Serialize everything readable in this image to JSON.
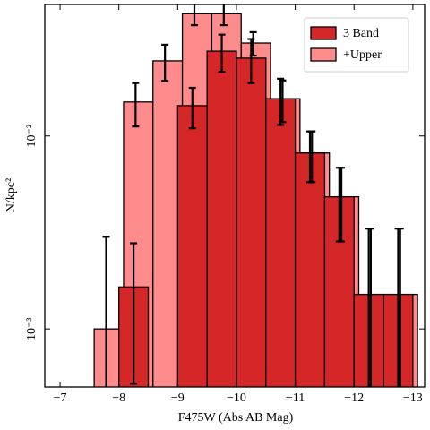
{
  "chart_data": {
    "type": "histogram",
    "xlabel": "F475W (Abs AB Mag)",
    "ylabel": "N/kpc²",
    "xlim": [
      -6.74,
      -13.2
    ],
    "ylim": [
      0.0005,
      0.048
    ],
    "log_y": true,
    "xticks": [
      {
        "value": -7,
        "label": "−7"
      },
      {
        "value": -8,
        "label": "−8"
      },
      {
        "value": -9,
        "label": "−9"
      },
      {
        "value": -10,
        "label": "−10"
      },
      {
        "value": -11,
        "label": "−11"
      },
      {
        "value": -12,
        "label": "−12"
      },
      {
        "value": -13,
        "label": "−13"
      }
    ],
    "yticks": [
      {
        "value": 0.001,
        "label": "10⁻³"
      },
      {
        "value": 0.01,
        "label": "10⁻²"
      }
    ],
    "legend": "upper right",
    "series": [
      {
        "name": "3 Band",
        "color": "#d62728",
        "bins": [
          -8,
          -8.5,
          -9,
          -9.5,
          -10,
          -10.5,
          -11,
          -11.5,
          -12,
          -12.5,
          -13
        ],
        "values": [
          0.00165,
          null,
          0.01436,
          0.0275,
          0.0253,
          0.0156,
          0.00816,
          0.00484,
          0.00151,
          0.00151
        ],
        "errors": [
          0.00113,
          null,
          0.0034,
          0.006,
          0.0065,
          0.0042,
          0.0024,
          0.002,
          0.0018,
          0.0018
        ]
      },
      {
        "name": "+Upper",
        "color": "#ff8c8c",
        "bins": [
          -7.58,
          -8.08,
          -8.58,
          -9.08,
          -9.58,
          -10.08,
          -10.58,
          -11.08,
          -11.58,
          -12.08,
          -12.58,
          -13.08
        ],
        "values": [
          0.001,
          0.015,
          0.0245,
          0.043,
          0.043,
          0.0303,
          0.0156,
          0.00816,
          0.00484,
          0.00151,
          0.00151
        ],
        "errors": [
          0.002,
          0.0038,
          0.0052,
          0.0055,
          0.0055,
          0.0042,
          0.0038,
          0.0024,
          0.002,
          0.0018,
          0.0018
        ]
      }
    ]
  }
}
